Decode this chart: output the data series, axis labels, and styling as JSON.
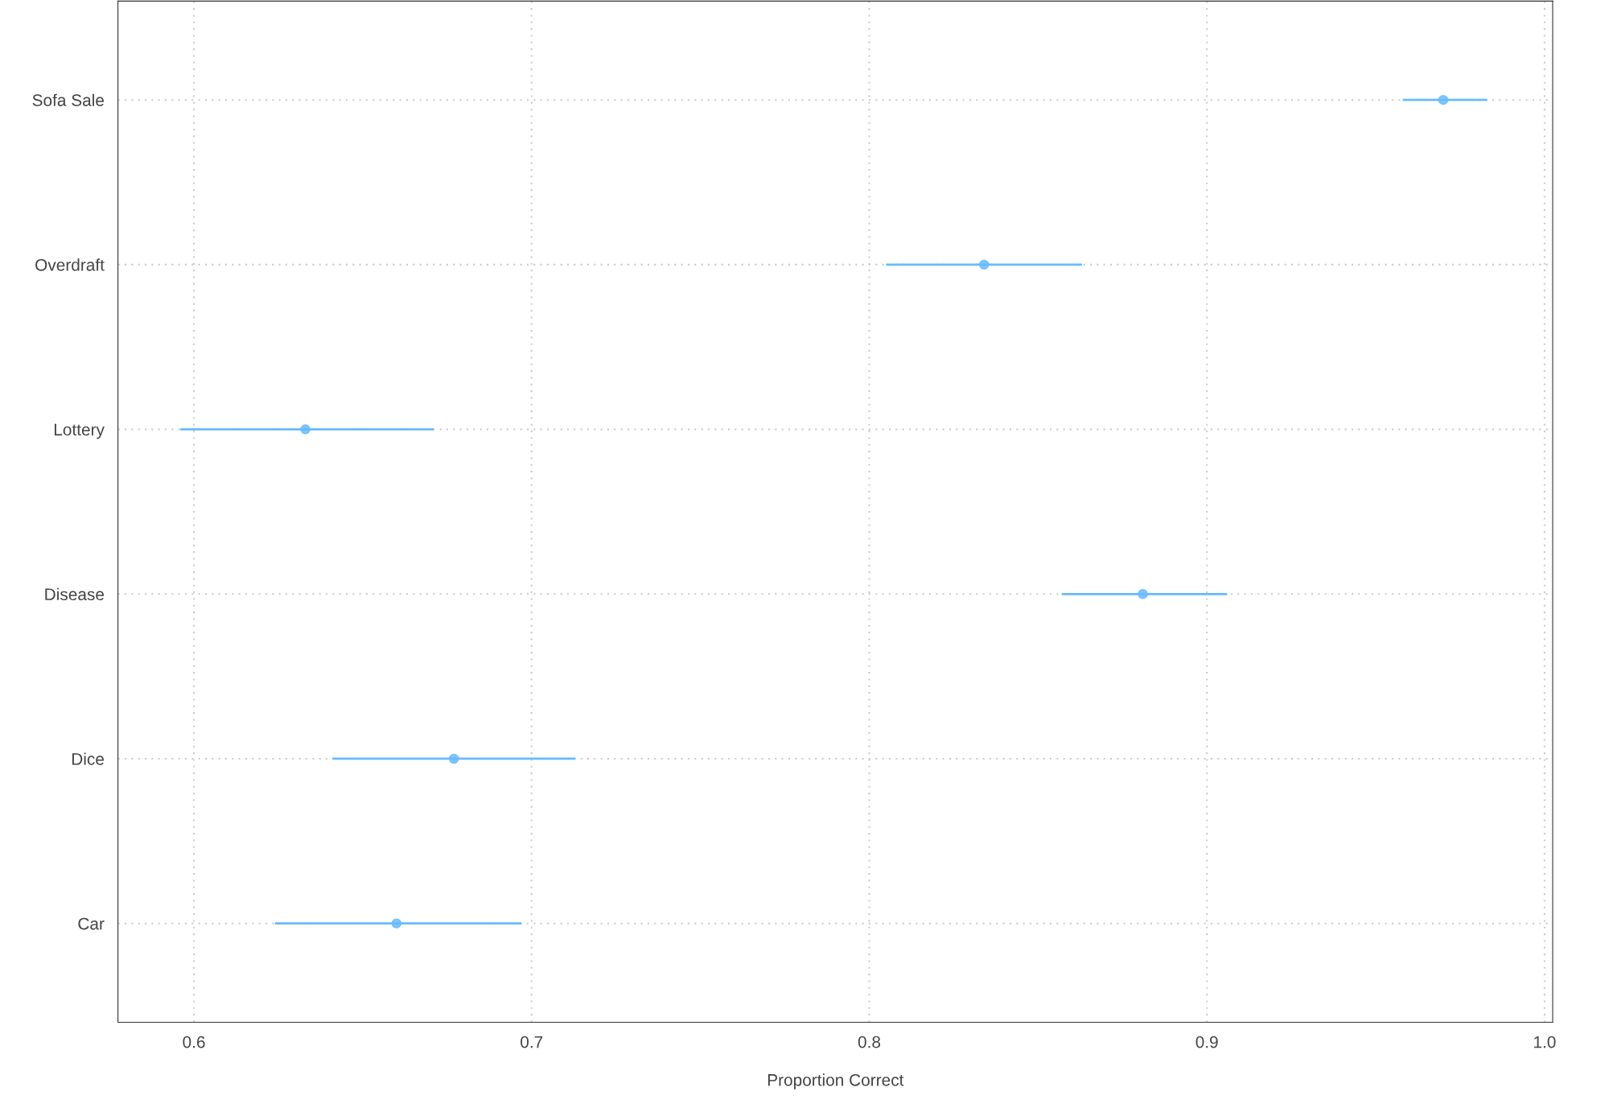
{
  "chart_data": {
    "type": "scatter",
    "orientation": "horizontal",
    "xlabel": "Proportion Correct",
    "categories": [
      "Sofa Sale",
      "Overdraft",
      "Lottery",
      "Disease",
      "Dice",
      "Car"
    ],
    "values": [
      0.97,
      0.834,
      0.633,
      0.881,
      0.677,
      0.66
    ],
    "errors": [
      [
        0.958,
        0.983
      ],
      [
        0.805,
        0.863
      ],
      [
        0.596,
        0.671
      ],
      [
        0.857,
        0.906
      ],
      [
        0.641,
        0.713
      ],
      [
        0.624,
        0.697
      ]
    ],
    "color": "#66bbff",
    "marker": "circle",
    "grid": true,
    "xlim": [
      0.5775,
      1.0024
    ],
    "xticks": [
      0.6,
      0.7,
      0.8,
      0.9,
      {
        "value": 1.0,
        "label": "1.0"
      }
    ]
  }
}
